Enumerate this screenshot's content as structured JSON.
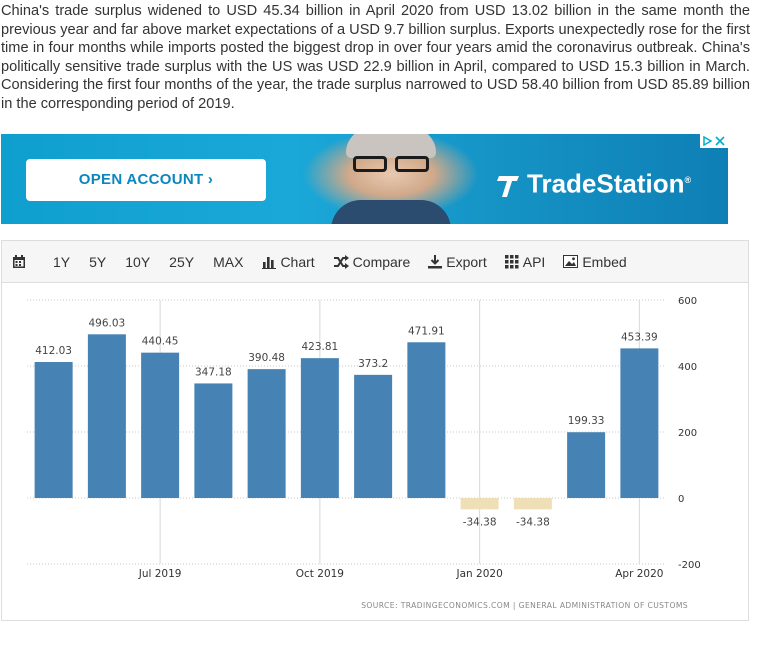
{
  "paragraph": "China's trade surplus widened to USD 45.34 billion in April 2020 from USD 13.02 billion in the same month the previous year and far above market expectations of a USD 9.7 billion surplus. Exports unexpectedly rose for the first time in four months while imports posted the biggest drop in over four years amid the coronavirus outbreak. China's politically sensitive trade surplus with the US was USD 22.9 billion in April, compared to USD 15.3 billion in March. Considering the first four months of the year, the trade surplus narrowed to USD 58.40 billion from USD 85.89 billion in the corresponding period of 2019.",
  "ad": {
    "button_label": "OPEN ACCOUNT  ›",
    "brand": "TradeStation",
    "brand_mark": "®",
    "accent": "#0c86bf"
  },
  "toolbar": {
    "items": [
      {
        "label": "1Y"
      },
      {
        "label": "5Y"
      },
      {
        "label": "10Y"
      },
      {
        "label": "25Y"
      },
      {
        "label": "MAX"
      },
      {
        "label": "Chart",
        "icon": "bar-chart-icon"
      },
      {
        "label": "Compare",
        "icon": "shuffle-icon"
      },
      {
        "label": "Export",
        "icon": "download-icon"
      },
      {
        "label": "API",
        "icon": "grid-icon"
      },
      {
        "label": "Embed",
        "icon": "image-icon"
      }
    ],
    "calendar_icon": "calendar-icon"
  },
  "chart_data": {
    "type": "bar",
    "title": "",
    "xlabel": "",
    "ylabel": "",
    "x": [
      "2019-05",
      "2019-06",
      "2019-07",
      "2019-08",
      "2019-09",
      "2019-10",
      "2019-11",
      "2019-12",
      "2020-01",
      "2020-02",
      "2020-03",
      "2020-04"
    ],
    "values": [
      412.03,
      496.03,
      440.45,
      347.18,
      390.48,
      423.81,
      373.2,
      471.91,
      -34.38,
      -34.38,
      199.33,
      453.39
    ],
    "value_labels": [
      "412.03",
      "496.03",
      "440.45",
      "347.18",
      "390.48",
      "423.81",
      "373.2",
      "471.91",
      "-34.38",
      "-34.38",
      "199.33",
      "453.39"
    ],
    "ylim": [
      -200,
      600
    ],
    "yticks": [
      -200,
      0,
      200,
      400,
      600
    ],
    "xticks": [
      {
        "at": "2019-07",
        "label": "Jul 2019"
      },
      {
        "at": "2019-10",
        "label": "Oct 2019"
      },
      {
        "at": "2020-01",
        "label": "Jan 2020"
      },
      {
        "at": "2020-04",
        "label": "Apr 2020"
      }
    ],
    "positive_color": "#4682b4",
    "negative_color": "#efdfb7",
    "grid": true,
    "legend": "none",
    "source": "SOURCE: TRADINGECONOMICS.COM  |  GENERAL ADMINISTRATION OF CUSTOMS"
  }
}
